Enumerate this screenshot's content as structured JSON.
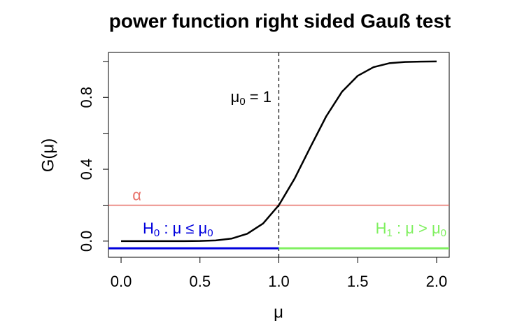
{
  "chart_data": {
    "type": "line",
    "title": "power function right sided Gauß test",
    "xlabel": "μ",
    "ylabel": "G(μ)",
    "x": [
      0,
      0.1,
      0.2,
      0.3,
      0.4,
      0.5,
      0.6,
      0.7,
      0.8,
      0.9,
      1.0,
      1.1,
      1.2,
      1.3,
      1.4,
      1.5,
      1.6,
      1.7,
      1.8,
      1.9,
      2.0
    ],
    "values": [
      0,
      0,
      0,
      0,
      0.0002,
      0.001,
      0.004,
      0.014,
      0.041,
      0.098,
      0.2,
      0.348,
      0.523,
      0.694,
      0.831,
      0.92,
      0.968,
      0.99,
      0.997,
      0.999,
      1.0
    ],
    "color": "#000000",
    "xlim": [
      -0.08,
      2.08
    ],
    "ylim": [
      -0.09,
      1.05
    ],
    "xticks": [
      {
        "value": 0,
        "label": "0.0"
      },
      0.5,
      {
        "value": 1,
        "label": "1.0"
      },
      1.5,
      {
        "value": 2,
        "label": "2.0"
      }
    ],
    "yticks": [
      {
        "value": 0,
        "label": "0.0"
      },
      0.4,
      0.8
    ],
    "yminorticks": [
      0.2,
      0.6,
      1.0
    ],
    "alpha": {
      "value": 0.2,
      "color": "#e8726a",
      "label": "α"
    },
    "mu0": {
      "value": 1,
      "label": [
        "μ",
        "0",
        " = 1"
      ]
    },
    "h0": {
      "value": -0.04,
      "color": "#0000dd",
      "label": [
        "H",
        "0",
        " : μ ≤ μ",
        "0"
      ]
    },
    "h1": {
      "value": -0.04,
      "color": "#80f060",
      "label": [
        "H",
        "1",
        " : μ > μ",
        "0"
      ]
    }
  }
}
